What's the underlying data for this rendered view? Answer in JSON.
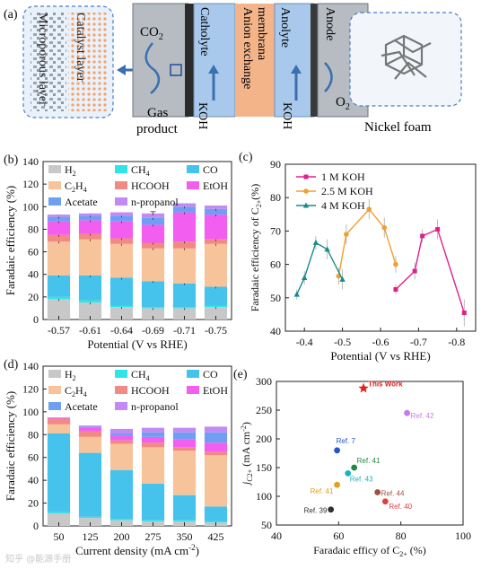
{
  "panel_a": {
    "letter": "(a)",
    "labels": {
      "microporous": "Microporous layer",
      "catalyst": "Catalyst layer",
      "co2": "CO",
      "co2_sub": "2",
      "gas_product_1": "Gas",
      "gas_product_2": "product",
      "catholyte": "Catholyte",
      "koh_1": "KOH",
      "aem_1": "Anion exchange",
      "aem_2": "membrana",
      "anolyte": "Anolyte",
      "koh_2": "KOH",
      "anode": "Anode",
      "o2": "O",
      "o2_sub": "2",
      "nickel_foam": "Nickel foam"
    }
  },
  "chart_data": [
    {
      "panel": "(b)",
      "type": "bar",
      "stacked": true,
      "categories": [
        "-0.57",
        "-0.61",
        "-0.64",
        "-0.69",
        "-0.71",
        "-0.75"
      ],
      "xlabel": "Potential (V vs RHE)",
      "ylabel": "Faradaic efficiency (%)",
      "ylim": [
        0,
        140
      ],
      "yticks": [
        0,
        20,
        40,
        60,
        80,
        100,
        120,
        140
      ],
      "legend": [
        "H",
        "CH",
        "CO",
        "C",
        "HCOOH",
        "EtOH",
        "Acetate",
        "n-propanol"
      ],
      "legend_parts": [
        {
          "t": "H",
          "s": "2"
        },
        {
          "t": "CH",
          "s": "4"
        },
        {
          "t": "CO",
          "s": ""
        },
        {
          "t": "C",
          "s": "2",
          "t2": "H",
          "s2": "4"
        },
        {
          "t": "HCOOH",
          "s": ""
        },
        {
          "t": "EtOH",
          "s": ""
        },
        {
          "t": "Acetate",
          "s": ""
        },
        {
          "t": "n-propanol",
          "s": ""
        }
      ],
      "series": [
        {
          "name": "H2",
          "values": [
            18,
            15,
            11,
            10,
            10,
            11
          ],
          "color": "#c8c8c8"
        },
        {
          "name": "CH4",
          "values": [
            2,
            2,
            1,
            1,
            1,
            1
          ],
          "color": "#2ee6e6"
        },
        {
          "name": "CO",
          "values": [
            19,
            22,
            25,
            23,
            21,
            17
          ],
          "color": "#46c3ec"
        },
        {
          "name": "C2H4",
          "values": [
            30,
            32,
            30,
            29,
            31,
            38
          ],
          "color": "#f6c39a"
        },
        {
          "name": "HCOOH",
          "values": [
            6,
            5,
            5,
            5,
            6,
            4
          ],
          "color": "#f08a82"
        },
        {
          "name": "EtOH",
          "values": [
            12,
            12,
            15,
            16,
            26,
            22
          ],
          "color": "#f25ef0"
        },
        {
          "name": "Acetate",
          "values": [
            4,
            4,
            5,
            6,
            5,
            5
          ],
          "color": "#6f9ff2"
        },
        {
          "name": "n-propanol",
          "values": [
            2,
            2,
            3,
            4,
            3,
            3
          ],
          "color": "#c28af2"
        }
      ]
    },
    {
      "panel": "(c)",
      "type": "line",
      "xlabel": "Potential (V vs RHE)",
      "ylabel": "Faradaic efficiency of C",
      "ylabel_sub": "2+",
      "ylabel_end": "(%)",
      "xlim": [
        -0.85,
        -0.35
      ],
      "xticks": [
        -0.4,
        -0.5,
        -0.6,
        -0.7,
        -0.8
      ],
      "ylim": [
        40,
        90
      ],
      "yticks": [
        40,
        50,
        60,
        70,
        80,
        90
      ],
      "series": [
        {
          "name": "1 M KOH",
          "color": "#e0208a",
          "marker": "square",
          "x": [
            -0.64,
            -0.69,
            -0.71,
            -0.75,
            -0.82
          ],
          "y": [
            52.5,
            58,
            68.5,
            70.5,
            45.5
          ],
          "err": [
            1.5,
            2.5,
            2,
            3,
            4
          ]
        },
        {
          "name": "2.5 M KOH",
          "color": "#f0a030",
          "marker": "circle",
          "x": [
            -0.49,
            -0.51,
            -0.57,
            -0.61,
            -0.64
          ],
          "y": [
            56.5,
            69,
            76.5,
            71,
            60
          ],
          "err": [
            2.5,
            3,
            3,
            3,
            2.5
          ]
        },
        {
          "name": "4 M KOH",
          "color": "#1a8a8a",
          "marker": "triangle",
          "x": [
            -0.38,
            -0.4,
            -0.43,
            -0.46,
            -0.5
          ],
          "y": [
            51,
            56,
            66.5,
            64.5,
            55.5
          ],
          "err": [
            1.5,
            2,
            2,
            3,
            3
          ]
        }
      ]
    },
    {
      "panel": "(d)",
      "type": "bar",
      "stacked": true,
      "categories": [
        "50",
        "125",
        "200",
        "275",
        "350",
        "425"
      ],
      "xlabel": "Current density (mA cm",
      "xlabel_sup": "-2",
      "xlabel_end": ")",
      "ylabel": "Faradaic efficiency (%)",
      "ylim": [
        0,
        140
      ],
      "yticks": [
        0,
        20,
        40,
        60,
        80,
        100,
        120,
        140
      ],
      "series": [
        {
          "name": "H2",
          "values": [
            11,
            7,
            5,
            4,
            4,
            3
          ],
          "color": "#c8c8c8"
        },
        {
          "name": "CH4",
          "values": [
            1,
            1,
            1,
            1,
            1,
            1
          ],
          "color": "#2ee6e6"
        },
        {
          "name": "CO",
          "values": [
            69,
            56,
            43,
            32,
            22,
            13
          ],
          "color": "#46c3ec"
        },
        {
          "name": "C2H4",
          "values": [
            8,
            14,
            23,
            32,
            39,
            45
          ],
          "color": "#f6c39a"
        },
        {
          "name": "HCOOH",
          "values": [
            5,
            5,
            3,
            4,
            3,
            3
          ],
          "color": "#f08a82"
        },
        {
          "name": "EtOH",
          "values": [
            1,
            3,
            4,
            5,
            7,
            8
          ],
          "color": "#f25ef0"
        },
        {
          "name": "Acetate",
          "values": [
            0,
            1,
            2,
            4,
            6,
            9
          ],
          "color": "#6f9ff2"
        },
        {
          "name": "n-propanol",
          "values": [
            0,
            1,
            4,
            4,
            4,
            5
          ],
          "color": "#c28af2"
        }
      ]
    },
    {
      "panel": "(e)",
      "type": "scatter",
      "xlabel": "Faradaic efficy of C",
      "xlabel_sub": "2+",
      "xlabel_end": " (%)",
      "ylabel": "j",
      "ylabel_sub": "C2+",
      "ylabel_end": " (mA cm",
      "ylabel_sup": "-2",
      "ylabel_close": ")",
      "xlim": [
        40,
        100
      ],
      "xticks": [
        40,
        60,
        80,
        100
      ],
      "ylim": [
        50,
        300
      ],
      "yticks": [
        50,
        100,
        150,
        200,
        250,
        300
      ],
      "points": [
        {
          "label": "This Work",
          "x": 68,
          "y": 288,
          "color": "#e02020",
          "star": true,
          "lx": 5,
          "ly": -2,
          "bold": true
        },
        {
          "label": "Ref. 42",
          "x": 82,
          "y": 245,
          "color": "#c77be8",
          "lx": 4,
          "ly": 6
        },
        {
          "label": "Ref. 7",
          "x": 59.5,
          "y": 180,
          "color": "#2255c8",
          "lx": -1,
          "ly": -8
        },
        {
          "label": "Ref. 41",
          "x": 65,
          "y": 150,
          "color": "#208840",
          "lx": 3,
          "ly": -5
        },
        {
          "label": "Ref. 43",
          "x": 63,
          "y": 140,
          "color": "#20b0c0",
          "lx": 2,
          "ly": 9
        },
        {
          "label": "Ref. 41",
          "x": 59.5,
          "y": 120,
          "color": "#e0a020",
          "lx": -30,
          "ly": 10
        },
        {
          "label": "Ref. 44",
          "x": 72.5,
          "y": 107,
          "color": "#a05040",
          "lx": 4,
          "ly": 4
        },
        {
          "label": "Ref. 40",
          "x": 75,
          "y": 91,
          "color": "#e04040",
          "lx": 4,
          "ly": 8
        },
        {
          "label": "Ref. 39",
          "x": 57.5,
          "y": 77,
          "color": "#303030",
          "lx": -30,
          "ly": 4
        }
      ]
    }
  ],
  "watermark": "知乎 @能源手册"
}
